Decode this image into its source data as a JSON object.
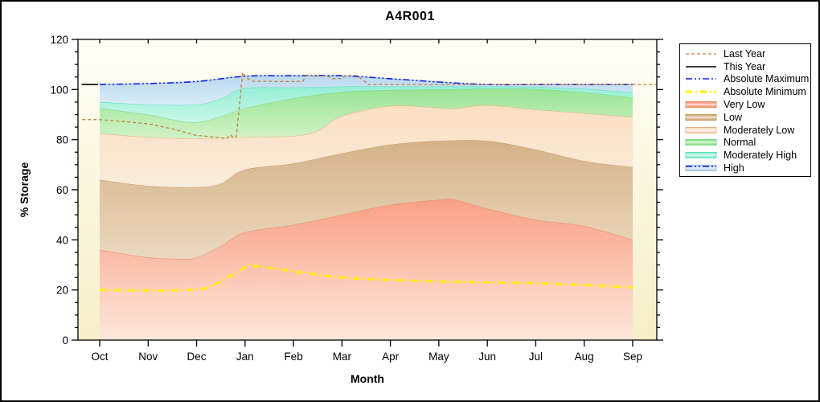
{
  "title": "A4R001",
  "axes": {
    "y_label": "% Storage",
    "x_label": "Month",
    "y_major_ticks": [
      0,
      20,
      40,
      60,
      80,
      100,
      120
    ],
    "y_minor_step": 5,
    "y_range": [
      0,
      120
    ],
    "x_tick_labels": [
      "Oct",
      "Nov",
      "Dec",
      "Jan",
      "Feb",
      "Mar",
      "Apr",
      "May",
      "Jun",
      "Jul",
      "Aug",
      "Sep"
    ]
  },
  "colors": {
    "plot_bg_top": "#FFFEF5",
    "plot_bg_bottom": "#F5EFC8",
    "axis": "#000000",
    "last_year": "#C4803E",
    "this_year": "#000000",
    "abs_max": "#1122DD",
    "abs_min": "#FFF000"
  },
  "legend": {
    "items": [
      {
        "label": "Last Year",
        "kind": "line",
        "color": "#C4803E",
        "dash": "4 3",
        "width": 1.3
      },
      {
        "label": "This Year",
        "kind": "line",
        "color": "#000000",
        "dash": "",
        "width": 1.5
      },
      {
        "label": "Absolute Maximum",
        "kind": "line",
        "color": "#1122DD",
        "dash": "8 3 2 3 2 3",
        "width": 1.6
      },
      {
        "label": "Absolute Minimum",
        "kind": "line",
        "color": "#FFF000",
        "dash": "8 4 2 4",
        "width": 3
      },
      {
        "label": "Very Low",
        "kind": "band",
        "edge": "#EE8560",
        "fill": "#F9A085"
      },
      {
        "label": "Low",
        "kind": "band",
        "edge": "#C49A66",
        "fill": "#D5B288"
      },
      {
        "label": "Moderately Low",
        "kind": "band",
        "edge": "#E4B07E",
        "fill": "#FBDFC2"
      },
      {
        "label": "Normal",
        "kind": "band",
        "edge": "#7CD67C",
        "fill": "#98E494"
      },
      {
        "label": "Moderately High",
        "kind": "band",
        "edge": "#58E0BC",
        "fill": "#96EED6"
      },
      {
        "label": "High",
        "kind": "band",
        "edge": "#9FC2E0",
        "fill": "#BBD8EE",
        "overlay_line": {
          "color": "#1122DD",
          "dash": "8 3 2 3 2 3",
          "width": 1.4
        }
      }
    ]
  },
  "chart_data": {
    "type": "area",
    "title": "A4R001",
    "xlabel": "Month",
    "ylabel": "% Storage",
    "ylim": [
      0,
      120
    ],
    "x_categories": [
      "Oct",
      "Nov",
      "Dec",
      "Jan",
      "Feb",
      "Mar",
      "Apr",
      "May",
      "Jun",
      "Jul",
      "Aug",
      "Sep"
    ],
    "grid": false,
    "legend_position": "outside-right",
    "bands": [
      {
        "name": "Very Low",
        "edge": "#EE8560",
        "fill_top": "#F9A085",
        "fill_bottom": "#FDE8DC",
        "top": [
          [
            0,
            36
          ],
          [
            1,
            33
          ],
          [
            1.7,
            32.4
          ],
          [
            2,
            33
          ],
          [
            2.5,
            37.5
          ],
          [
            3,
            43
          ],
          [
            4,
            46
          ],
          [
            5,
            50
          ],
          [
            6,
            54
          ],
          [
            7,
            56
          ],
          [
            7.3,
            56.2
          ],
          [
            8,
            52.5
          ],
          [
            9,
            48
          ],
          [
            10,
            45.5
          ],
          [
            11,
            40
          ]
        ]
      },
      {
        "name": "Low",
        "edge": "#C49A66",
        "fill_top": "#D5B288",
        "fill_bottom": "#EBD9C0",
        "top": [
          [
            0,
            64
          ],
          [
            1,
            61.5
          ],
          [
            2,
            61
          ],
          [
            2.5,
            62.5
          ],
          [
            3,
            68
          ],
          [
            4,
            70.5
          ],
          [
            5,
            74.5
          ],
          [
            6,
            78
          ],
          [
            7,
            79.5
          ],
          [
            8,
            79.5
          ],
          [
            9,
            76
          ],
          [
            10,
            71.5
          ],
          [
            11,
            69
          ]
        ]
      },
      {
        "name": "Moderately Low",
        "edge": "#E4B07E",
        "fill_top": "#FBDFC2",
        "fill_bottom": "#FAECDC",
        "top": [
          [
            0,
            82.5
          ],
          [
            1,
            81
          ],
          [
            2,
            80.5
          ],
          [
            3,
            81
          ],
          [
            4,
            81.5
          ],
          [
            4.5,
            83.5
          ],
          [
            5,
            89.5
          ],
          [
            6,
            93.5
          ],
          [
            6.8,
            93
          ],
          [
            7.3,
            92.4
          ],
          [
            8,
            93.8
          ],
          [
            9,
            92
          ],
          [
            10,
            90.5
          ],
          [
            11,
            89
          ]
        ]
      },
      {
        "name": "Normal",
        "edge": "#7CD67C",
        "fill_top": "#98E494",
        "fill_bottom": "#D2F2C8",
        "top": [
          [
            0,
            92.5
          ],
          [
            1,
            90
          ],
          [
            2,
            87
          ],
          [
            3,
            92.5
          ],
          [
            4,
            96.5
          ],
          [
            5,
            99
          ],
          [
            6,
            99.8
          ],
          [
            7,
            100
          ],
          [
            8,
            100.3
          ],
          [
            9,
            100.2
          ],
          [
            10,
            98.8
          ],
          [
            11,
            96.8
          ]
        ]
      },
      {
        "name": "Moderately High",
        "edge": "#58E0BC",
        "fill_top": "#96EED6",
        "fill_bottom": "#C8F7E8",
        "top": [
          [
            0,
            95
          ],
          [
            1,
            94
          ],
          [
            2,
            94
          ],
          [
            2.5,
            96.3
          ],
          [
            3,
            100.5
          ],
          [
            4,
            100.8
          ],
          [
            5,
            101.2
          ],
          [
            6,
            101.2
          ],
          [
            7,
            101.2
          ],
          [
            8,
            101.2
          ],
          [
            9,
            101
          ],
          [
            10,
            100.3
          ],
          [
            11,
            98.8
          ]
        ]
      },
      {
        "name": "High",
        "edge": "#9FC2E0",
        "fill_top": "#BBD8EE",
        "fill_bottom": "#D9EBF7",
        "top": [
          [
            0,
            102
          ],
          [
            1,
            102.4
          ],
          [
            2,
            103.2
          ],
          [
            3,
            105.3
          ],
          [
            4,
            105.5
          ],
          [
            5,
            105.5
          ],
          [
            6,
            104.3
          ],
          [
            7,
            103
          ],
          [
            8,
            102
          ],
          [
            9,
            102
          ],
          [
            10,
            102
          ],
          [
            11,
            102
          ]
        ]
      }
    ],
    "series": [
      {
        "name": "Absolute Maximum",
        "color": "#1122DD",
        "dash": "8 3 2 3 2 3",
        "width": 1.6,
        "smooth": true,
        "points": [
          [
            0,
            102
          ],
          [
            1,
            102.4
          ],
          [
            2,
            103.2
          ],
          [
            3,
            105.3
          ],
          [
            4,
            105.5
          ],
          [
            5,
            105.5
          ],
          [
            6,
            104.3
          ],
          [
            7,
            103
          ],
          [
            8,
            102
          ],
          [
            9,
            102
          ],
          [
            10,
            102
          ],
          [
            11,
            102
          ]
        ]
      },
      {
        "name": "Absolute Minimum",
        "color": "#FFF000",
        "dash": "8 4 2 4",
        "width": 3,
        "smooth": true,
        "points": [
          [
            0,
            20
          ],
          [
            1,
            19.8
          ],
          [
            1.8,
            20
          ],
          [
            2.3,
            21.5
          ],
          [
            3,
            29
          ],
          [
            3.15,
            29.6
          ],
          [
            3.6,
            28.6
          ],
          [
            4,
            27.5
          ],
          [
            5,
            25
          ],
          [
            6,
            24
          ],
          [
            7,
            23.4
          ],
          [
            8,
            23
          ],
          [
            9,
            22.7
          ],
          [
            10,
            22
          ],
          [
            10.4,
            21.6
          ],
          [
            11,
            21
          ]
        ]
      },
      {
        "name": "Last Year",
        "color": "#C4803E",
        "dash": "4 3",
        "width": 1.3,
        "smooth": false,
        "points": [
          [
            -0.36,
            88
          ],
          [
            0,
            88
          ],
          [
            0.5,
            87.2
          ],
          [
            1,
            86.3
          ],
          [
            1.5,
            84.3
          ],
          [
            2,
            81.7
          ],
          [
            2.4,
            81
          ],
          [
            2.62,
            80.4
          ],
          [
            2.7,
            81.9
          ],
          [
            2.76,
            80.7
          ],
          [
            2.82,
            81.3
          ],
          [
            2.9,
            97
          ],
          [
            2.95,
            106.8
          ],
          [
            3.02,
            104.8
          ],
          [
            3.15,
            103.3
          ],
          [
            4,
            103.2
          ],
          [
            4.2,
            103.3
          ],
          [
            4.25,
            105.4
          ],
          [
            4.7,
            105.4
          ],
          [
            4.8,
            104.3
          ],
          [
            5,
            104.4
          ],
          [
            5.08,
            105.6
          ],
          [
            5.3,
            105.6
          ],
          [
            5.45,
            103.5
          ],
          [
            5.55,
            102
          ],
          [
            11.5,
            102
          ]
        ]
      },
      {
        "name": "This Year",
        "color": "#000000",
        "dash": "",
        "width": 1.6,
        "smooth": false,
        "points": [
          [
            -0.37,
            102
          ],
          [
            -0.03,
            102
          ]
        ]
      }
    ]
  }
}
